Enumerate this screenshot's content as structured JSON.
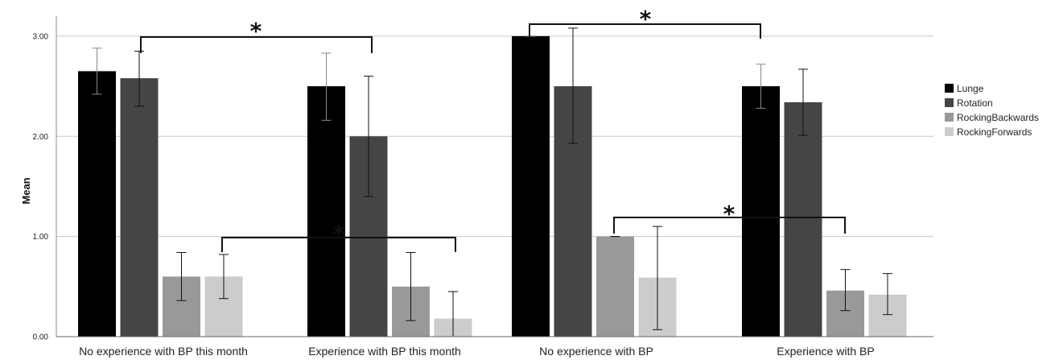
{
  "chart_data": {
    "type": "bar",
    "title": "",
    "xlabel": "",
    "ylabel": "Mean",
    "ylim": [
      0,
      3.2
    ],
    "yticks": [
      "0.00",
      "1.00",
      "2.00",
      "3.00"
    ],
    "grid": true,
    "legend_position": "right",
    "categories": [
      "No experience with BP this month",
      "Experience with BP this month",
      "No experience with BP",
      "Experience with BP"
    ],
    "series": [
      {
        "name": "Lunge",
        "color": "#000000",
        "values": [
          2.65,
          2.5,
          3.0,
          2.5
        ],
        "error_low": [
          2.42,
          2.16,
          3.0,
          2.28
        ],
        "error_high": [
          2.88,
          2.83,
          3.0,
          2.72
        ]
      },
      {
        "name": "Rotation",
        "color": "#454545",
        "values": [
          2.58,
          2.0,
          2.5,
          2.34
        ],
        "error_low": [
          2.3,
          1.4,
          1.93,
          2.01
        ],
        "error_high": [
          2.85,
          2.6,
          3.08,
          2.67
        ]
      },
      {
        "name": "RockingBackwards",
        "color": "#999999",
        "values": [
          0.6,
          0.5,
          1.0,
          0.46
        ],
        "error_low": [
          0.36,
          0.16,
          1.0,
          0.26
        ],
        "error_high": [
          0.84,
          0.84,
          1.0,
          0.67
        ]
      },
      {
        "name": "RockingForwards",
        "color": "#cccccc",
        "values": [
          0.6,
          0.18,
          0.59,
          0.42
        ],
        "error_low": [
          0.38,
          0.0,
          0.07,
          0.22
        ],
        "error_high": [
          0.82,
          0.45,
          1.1,
          0.63
        ]
      }
    ],
    "annotations": {
      "significance_marker": "*"
    }
  }
}
